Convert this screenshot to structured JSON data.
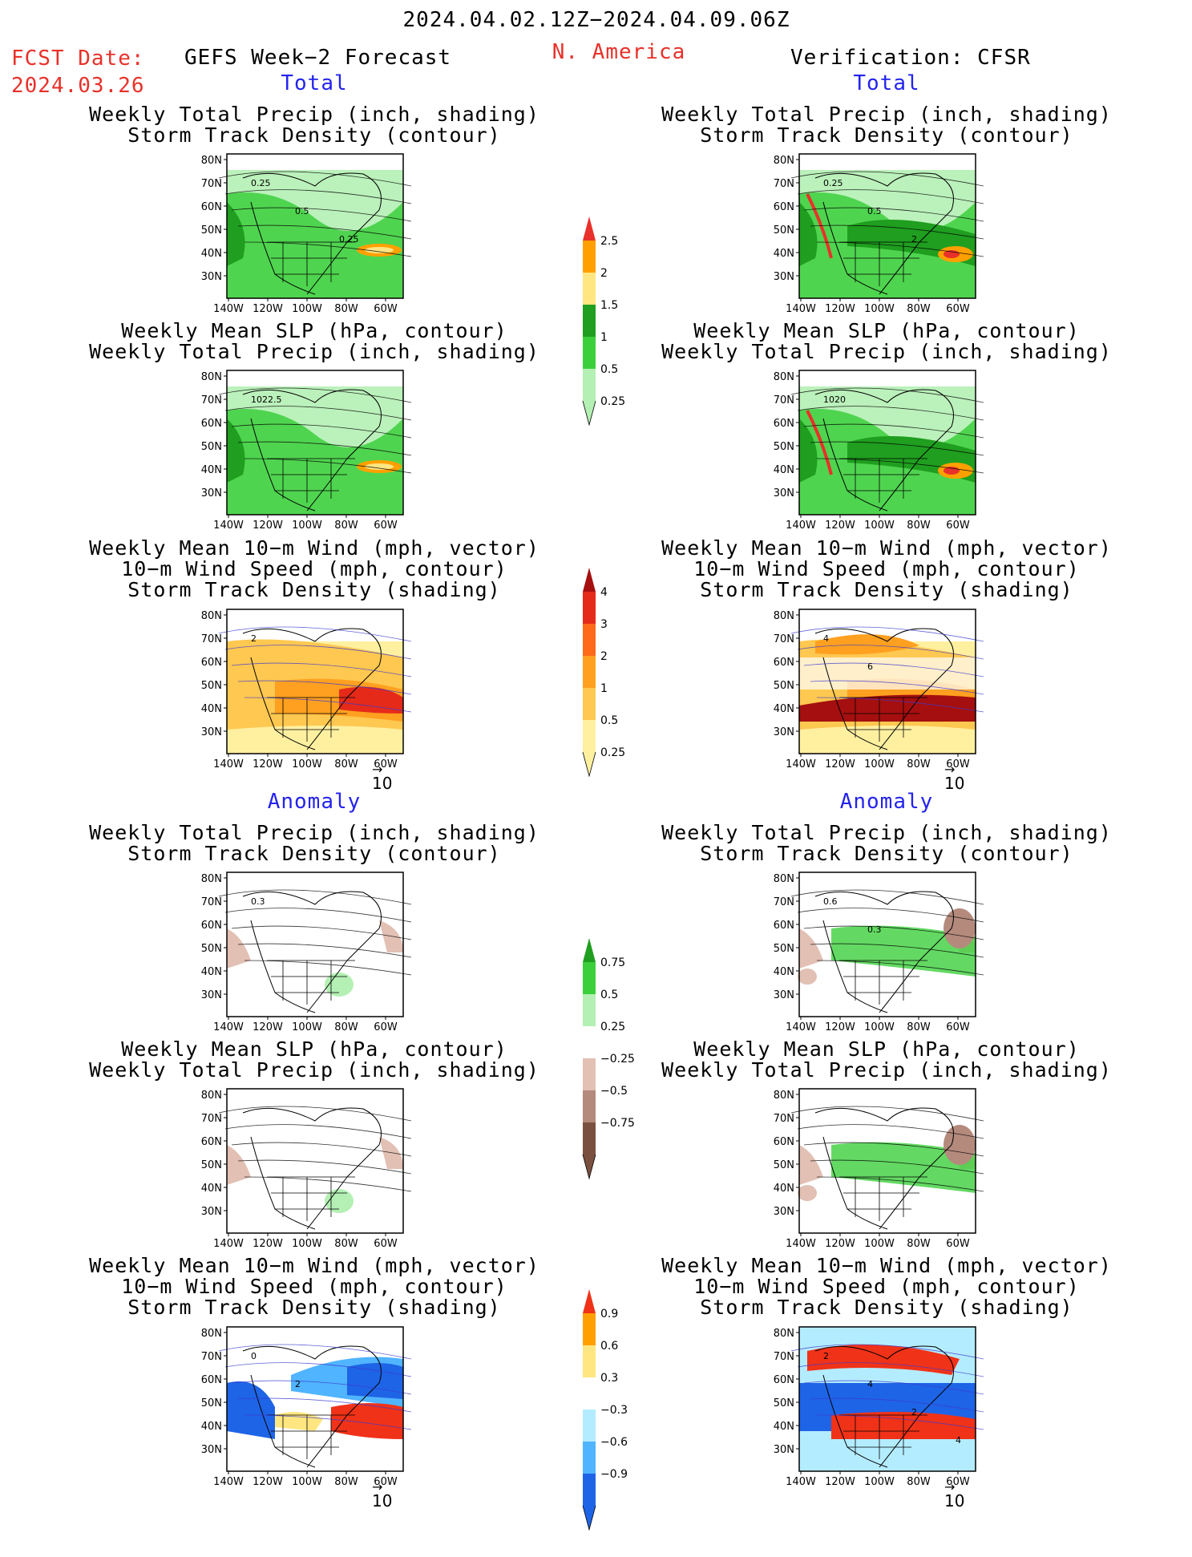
{
  "header": {
    "date_range": "2024.04.02.12Z−2024.04.09.06Z",
    "fcst_label": "FCST Date:",
    "fcst_date": "2024.03.26",
    "left_title": "GEFS Week−2 Forecast",
    "region": "N. America",
    "right_title": "Verification: CFSR",
    "section_total": "Total",
    "section_anomaly": "Anomaly"
  },
  "titles": {
    "precip_track": [
      "Weekly Total Precip (inch, shading)",
      "Storm Track Density (contour)"
    ],
    "slp_precip": [
      "Weekly Mean SLP (hPa, contour)",
      "Weekly Total Precip (inch, shading)"
    ],
    "wind_track": [
      "Weekly Mean 10−m Wind (mph, vector)",
      "10−m Wind Speed (mph, contour)",
      "Storm Track Density (shading)"
    ]
  },
  "axes": {
    "lat_labels": [
      "80N",
      "70N",
      "60N",
      "50N",
      "40N",
      "30N"
    ],
    "lon_labels": [
      "140W",
      "120W",
      "100W",
      "80W",
      "60W"
    ]
  },
  "vector_ref": "10",
  "contour_labels": {
    "l1": [
      "0.25",
      "0.5",
      "0.25"
    ],
    "r1": [
      "0.25",
      "0.5",
      "2"
    ],
    "l2": [
      "1022.5"
    ],
    "r2": [
      "1020"
    ],
    "l3": [
      "2"
    ],
    "r3": [
      "4",
      "6"
    ],
    "l4": [
      "0.3"
    ],
    "r4": [
      "0.6",
      "0.3"
    ],
    "l6": [
      "0",
      "2"
    ],
    "r6": [
      "2",
      "4",
      "2",
      "4"
    ]
  },
  "colorbars": {
    "precip_total": {
      "labels": [
        "2.5",
        "2",
        "1.5",
        "1",
        "0.5",
        "0.25"
      ],
      "colors": [
        "#e8312a",
        "#ffa000",
        "#ffe680",
        "#1f9e1f",
        "#3ccf3c",
        "#b4f0b4"
      ]
    },
    "track_total": {
      "labels": [
        "4",
        "3",
        "2",
        "1",
        "0.5",
        "0.25"
      ],
      "colors": [
        "#a50f0f",
        "#e52a1a",
        "#ff6a1a",
        "#ffa020",
        "#ffc850",
        "#fff0a0"
      ]
    },
    "precip_anom": {
      "labels": [
        "0.75",
        "0.5",
        "0.25",
        "−0.25",
        "−0.5",
        "−0.75"
      ],
      "colors": [
        "#1f9e1f",
        "#3ccf3c",
        "#b4f0b4",
        "#ffffff",
        "#e2c0b4",
        "#b48a7c",
        "#7a5040"
      ]
    },
    "track_anom": {
      "labels": [
        "0.9",
        "0.6",
        "0.3",
        "−0.3",
        "−0.6",
        "−0.9"
      ],
      "colors": [
        "#f03218",
        "#ffa000",
        "#ffe680",
        "#ffffff",
        "#b4ecff",
        "#50b4ff",
        "#1e64e6"
      ]
    }
  }
}
